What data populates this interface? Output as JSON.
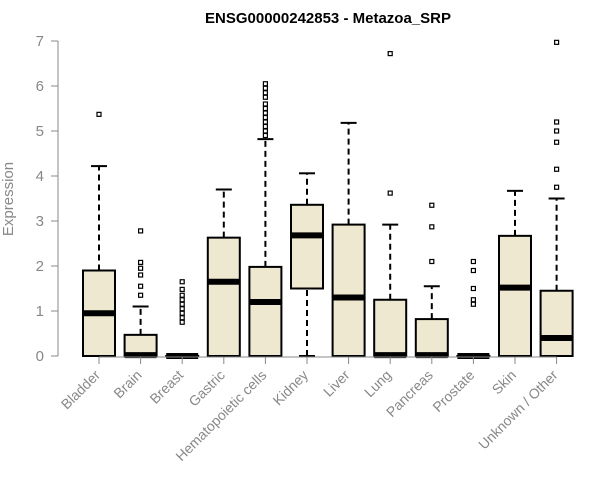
{
  "chart_data": {
    "type": "boxplot",
    "title": "ENSG00000242853 - Metazoa_SRP",
    "xlabel": "",
    "ylabel": "Expression",
    "ylim": [
      0,
      7
    ],
    "yticks": [
      0,
      1,
      2,
      3,
      4,
      5,
      6,
      7
    ],
    "grid": false,
    "colors": {
      "box_fill": "#efe8d0",
      "stroke": "#000000",
      "axis": "#888888"
    },
    "categories": [
      "Bladder",
      "Brain",
      "Breast",
      "Gastric",
      "Hematopoietic cells",
      "Kidney",
      "Liver",
      "Lung",
      "Pancreas",
      "Prostate",
      "Skin",
      "Unknown / Other"
    ],
    "boxes": [
      {
        "name": "Bladder",
        "whisker_low": 0,
        "q1": 0,
        "median": 0.95,
        "q3": 1.9,
        "whisker_high": 4.22,
        "outliers": [
          5.37
        ]
      },
      {
        "name": "Brain",
        "whisker_low": 0,
        "q1": 0,
        "median": 0.02,
        "q3": 0.47,
        "whisker_high": 1.1,
        "outliers": [
          1.35,
          1.55,
          1.8,
          1.95,
          2.08,
          2.78
        ]
      },
      {
        "name": "Breast",
        "whisker_low": 0,
        "q1": 0,
        "median": 0,
        "q3": 0,
        "whisker_high": 0,
        "outliers": [
          0.75,
          0.85,
          0.95,
          1.05,
          1.15,
          1.25,
          1.35,
          1.48,
          1.65
        ]
      },
      {
        "name": "Gastric",
        "whisker_low": 0,
        "q1": 0,
        "median": 1.65,
        "q3": 2.63,
        "whisker_high": 3.7,
        "outliers": []
      },
      {
        "name": "Hematopoietic cells",
        "whisker_low": 0,
        "q1": 0,
        "median": 1.2,
        "q3": 1.98,
        "whisker_high": 4.82,
        "outliers": [
          4.9,
          5.0,
          5.1,
          5.2,
          5.3,
          5.4,
          5.5,
          5.6,
          5.75,
          5.85,
          5.95,
          6.05
        ]
      },
      {
        "name": "Kidney",
        "whisker_low": 0,
        "q1": 1.5,
        "median": 2.68,
        "q3": 3.36,
        "whisker_high": 4.06,
        "outliers": []
      },
      {
        "name": "Liver",
        "whisker_low": 0,
        "q1": 0,
        "median": 1.3,
        "q3": 2.92,
        "whisker_high": 5.18,
        "outliers": []
      },
      {
        "name": "Lung",
        "whisker_low": 0,
        "q1": 0,
        "median": 0.02,
        "q3": 1.25,
        "whisker_high": 2.92,
        "outliers": [
          3.62,
          6.72
        ]
      },
      {
        "name": "Pancreas",
        "whisker_low": 0,
        "q1": 0,
        "median": 0.02,
        "q3": 0.82,
        "whisker_high": 1.55,
        "outliers": [
          2.1,
          2.87,
          3.35
        ]
      },
      {
        "name": "Prostate",
        "whisker_low": 0,
        "q1": 0,
        "median": 0,
        "q3": 0,
        "whisker_high": 0,
        "outliers": [
          1.15,
          1.25,
          1.5,
          1.9,
          2.1
        ]
      },
      {
        "name": "Skin",
        "whisker_low": 0,
        "q1": 0,
        "median": 1.52,
        "q3": 2.67,
        "whisker_high": 3.67,
        "outliers": []
      },
      {
        "name": "Unknown / Other",
        "whisker_low": 0,
        "q1": 0,
        "median": 0.4,
        "q3": 1.45,
        "whisker_high": 3.5,
        "outliers": [
          3.75,
          4.15,
          4.75,
          5.0,
          5.2,
          6.97
        ]
      }
    ]
  }
}
